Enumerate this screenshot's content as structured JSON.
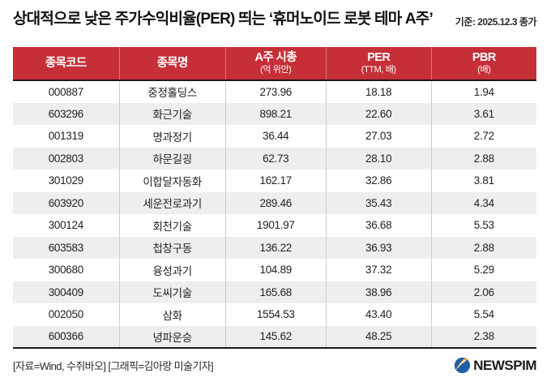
{
  "header": {
    "title": "상대적으로 낮은 주가수익비율(PER) 띄는 ‘휴머노이드 로봇 테마 A주’",
    "note": "기준: 2025.12.3 종가"
  },
  "table": {
    "columns": [
      {
        "label": "종목코드",
        "sub": ""
      },
      {
        "label": "종목명",
        "sub": ""
      },
      {
        "label": "A주 시총",
        "sub": "(억 위안)"
      },
      {
        "label": "PER",
        "sub": "(TTM, 배)"
      },
      {
        "label": "PBR",
        "sub": "(배)"
      }
    ],
    "rows": [
      [
        "000887",
        "중정홀딩스",
        "273.96",
        "18.18",
        "1.94"
      ],
      [
        "603296",
        "화근기술",
        "898.21",
        "22.60",
        "3.61"
      ],
      [
        "001319",
        "명과정기",
        "36.44",
        "27.03",
        "2.72"
      ],
      [
        "002803",
        "하문길굉",
        "62.73",
        "28.10",
        "2.88"
      ],
      [
        "301029",
        "이합달자동화",
        "162.17",
        "32.86",
        "3.81"
      ],
      [
        "603920",
        "세운전로과기",
        "289.46",
        "35.43",
        "4.34"
      ],
      [
        "300124",
        "회천기술",
        "1901.97",
        "36.68",
        "5.53"
      ],
      [
        "603583",
        "첩창구동",
        "136.22",
        "36.93",
        "2.88"
      ],
      [
        "300680",
        "융성과기",
        "104.89",
        "37.32",
        "5.29"
      ],
      [
        "300409",
        "도씨기술",
        "165.68",
        "38.96",
        "2.06"
      ],
      [
        "002050",
        "삼화",
        "1554.53",
        "43.40",
        "5.54"
      ],
      [
        "600366",
        "녕파운승",
        "145.62",
        "48.25",
        "2.38"
      ]
    ]
  },
  "footer": {
    "credit": "[자료=Wind, 수쥐바오] [그래픽=김아랑 미술기자]",
    "logo_text": "NEWSPIM"
  },
  "colors": {
    "header_red": "#c62f38",
    "row_alt_gray": "#eeeeee",
    "border_dark": "#1a1a1a",
    "body_divider": "#cccccc",
    "logo_blue": "#1f5fa8",
    "logo_orange": "#f5a81c"
  },
  "chart_data": {
    "type": "table",
    "title": "상대적으로 낮은 주가수익비율(PER) 띄는 ‘휴머노이드 로봇 테마 A주’",
    "as_of": "2025.12.3 종가",
    "columns": [
      "종목코드",
      "종목명",
      "A주 시총(억 위안)",
      "PER(TTM, 배)",
      "PBR(배)"
    ],
    "rows": [
      [
        "000887",
        "중정홀딩스",
        273.96,
        18.18,
        1.94
      ],
      [
        "603296",
        "화근기술",
        898.21,
        22.6,
        3.61
      ],
      [
        "001319",
        "명과정기",
        36.44,
        27.03,
        2.72
      ],
      [
        "002803",
        "하문길굉",
        62.73,
        28.1,
        2.88
      ],
      [
        "301029",
        "이합달자동화",
        162.17,
        32.86,
        3.81
      ],
      [
        "603920",
        "세운전로과기",
        289.46,
        35.43,
        4.34
      ],
      [
        "300124",
        "회천기술",
        1901.97,
        36.68,
        5.53
      ],
      [
        "603583",
        "첩창구동",
        136.22,
        36.93,
        2.88
      ],
      [
        "300680",
        "융성과기",
        104.89,
        37.32,
        5.29
      ],
      [
        "300409",
        "도씨기술",
        165.68,
        38.96,
        2.06
      ],
      [
        "002050",
        "삼화",
        1554.53,
        43.4,
        5.54
      ],
      [
        "600366",
        "녕파운승",
        145.62,
        48.25,
        2.38
      ]
    ]
  }
}
